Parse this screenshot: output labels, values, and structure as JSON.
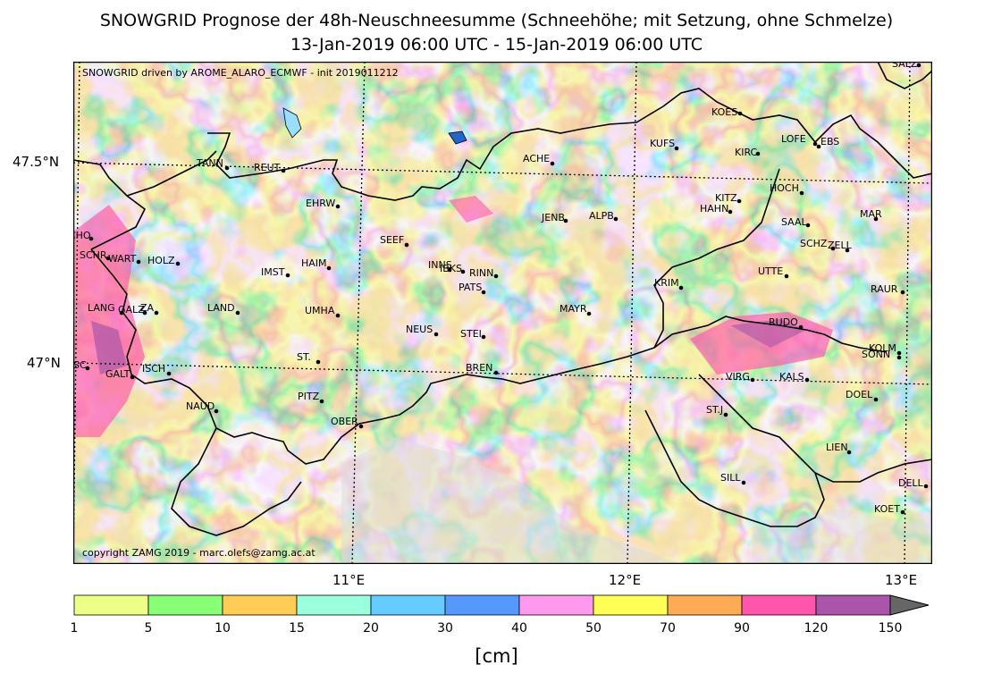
{
  "title_line1": "SNOWGRID Prognose der 48h-Neuschneesumme (Schneehöhe; mit Setzung, ohne Schmelze)",
  "title_line2": "13-Jan-2019 06:00 UTC - 15-Jan-2019 06:00 UTC",
  "model_info": "SNOWGRID driven by AROME_ALARO_ECMWF - init 2019011212",
  "copyright": "copyright ZAMG 2019 - marc.olefs@zamg.ac.at",
  "lat_labels": [
    "47.5°N",
    "47°N"
  ],
  "lon_labels": [
    "11°E",
    "12°E",
    "13°E"
  ],
  "colorbar": {
    "ticks": [
      "1",
      "5",
      "10",
      "15",
      "20",
      "30",
      "40",
      "50",
      "70",
      "90",
      "120",
      "150"
    ],
    "colors": [
      "#eeff88",
      "#88ff77",
      "#ffcc55",
      "#99ffdd",
      "#66ccff",
      "#5599ff",
      "#ff99ee",
      "#ffff55",
      "#ffaa55",
      "#ff55aa",
      "#aa55aa",
      "#666666"
    ],
    "unit": "[cm]"
  },
  "stations": [
    "SALZ",
    "KOES",
    "KUFS",
    "KIRC",
    "LOFE",
    "EBS",
    "TANN",
    "REUT",
    "ACHE",
    "HOCH",
    "KITZ",
    "HAHN",
    "EHRW",
    "JENB",
    "ALPB",
    "MAR",
    "SAAL",
    "SCHO",
    "SEEF",
    "SCHZ",
    "ZELL",
    "SCHR",
    "WART",
    "HOLZ",
    "HAIM",
    "IMST",
    "INNS",
    "IBKS",
    "RINN",
    "UTTE",
    "PATS",
    "KRIM",
    "RAUR",
    "LANG",
    "GALZ",
    "ZA",
    "LAND",
    "UMHA",
    "MAYR",
    "RUDO",
    "NEUS",
    "STEI",
    "ST.",
    "KOLM",
    "SONN",
    "GASC",
    "GALT",
    "ISCH",
    "BREN",
    "VIRG",
    "KALS",
    "DOEL",
    "NAUD",
    "PITZ",
    "ST.J",
    "OBER",
    "LIEN",
    "SILL",
    "DELL",
    "KOET"
  ]
}
